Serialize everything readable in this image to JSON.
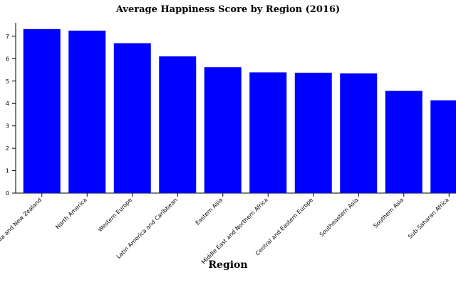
{
  "chart_data": {
    "type": "bar",
    "title": "Average Happiness Score by Region (2016)",
    "xlabel": "Region",
    "ylabel": "",
    "categories": [
      "Australia and New Zealand",
      "North America",
      "Western Europe",
      "Latin America and Caribbean",
      "Eastern Asia",
      "Middle East and Northern Africa",
      "Central and Eastern Europe",
      "Southeastern Asia",
      "Southern Asia",
      "Sub-Saharan Africa"
    ],
    "values": [
      7.32,
      7.25,
      6.69,
      6.1,
      5.62,
      5.39,
      5.37,
      5.34,
      4.56,
      4.14
    ],
    "ylim": [
      0,
      7.6
    ],
    "yticks": [
      "0",
      "1",
      "2",
      "3",
      "4",
      "5",
      "6",
      "7"
    ],
    "grid": false,
    "bar_color": "#0000ff"
  }
}
